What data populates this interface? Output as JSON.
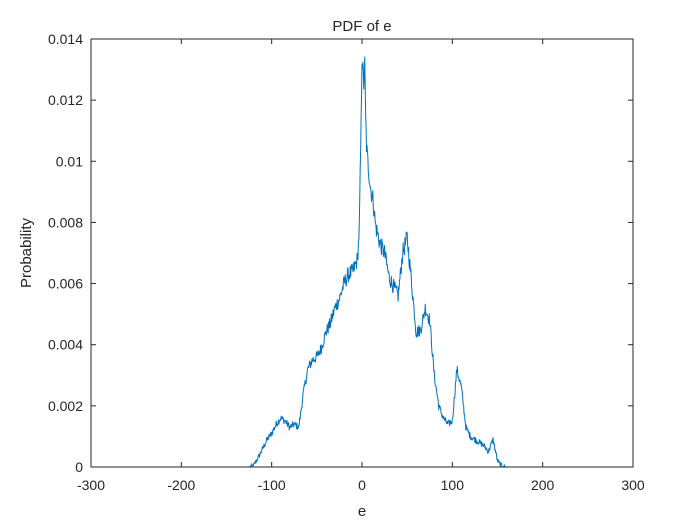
{
  "chart_data": {
    "type": "line",
    "title": "PDF of e",
    "xlabel": "e",
    "ylabel": "Probability",
    "xlim": [
      -300,
      300
    ],
    "ylim": [
      0,
      0.014
    ],
    "xticks": [
      -300,
      -200,
      -100,
      0,
      100,
      200,
      300
    ],
    "xtick_labels": [
      "-300",
      "-200",
      "-100",
      "0",
      "100",
      "200",
      "300"
    ],
    "yticks": [
      0,
      0.002,
      0.004,
      0.006,
      0.008,
      0.01,
      0.012,
      0.014
    ],
    "ytick_labels": [
      "0",
      "0.002",
      "0.004",
      "0.006",
      "0.008",
      "0.01",
      "0.012",
      "0.014"
    ],
    "grid": false,
    "line_color": "#0072BD",
    "series": [
      {
        "x": [
          -255,
          -200,
          -150,
          -125,
          -120,
          -115,
          -110,
          -105,
          -100,
          -95,
          -90,
          -85,
          -80,
          -75,
          -70,
          -65,
          -60,
          -55,
          -50,
          -45,
          -40,
          -35,
          -30,
          -25,
          -20,
          -15,
          -10,
          -5,
          -3,
          -1,
          0,
          1,
          2,
          3,
          4,
          5,
          7,
          10,
          12,
          15,
          20,
          25,
          30,
          35,
          40,
          45,
          50,
          55,
          60,
          65,
          70,
          75,
          80,
          85,
          90,
          95,
          100,
          105,
          110,
          115,
          120,
          125,
          130,
          135,
          140,
          145,
          150,
          155,
          160,
          200,
          255
        ],
        "y": [
          0,
          0,
          0,
          0,
          5e-05,
          0.0003,
          0.0006,
          0.0009,
          0.0011,
          0.0014,
          0.0016,
          0.0015,
          0.0013,
          0.0014,
          0.0013,
          0.0024,
          0.0032,
          0.0035,
          0.0036,
          0.0039,
          0.0044,
          0.0047,
          0.0052,
          0.0055,
          0.006,
          0.0063,
          0.0064,
          0.0068,
          0.0078,
          0.0112,
          0.0134,
          0.013,
          0.0125,
          0.0132,
          0.0115,
          0.0105,
          0.0098,
          0.009,
          0.0088,
          0.0079,
          0.0073,
          0.007,
          0.0062,
          0.0059,
          0.0056,
          0.007,
          0.0075,
          0.006,
          0.0044,
          0.0045,
          0.0052,
          0.0048,
          0.003,
          0.002,
          0.0016,
          0.0014,
          0.0015,
          0.0032,
          0.0026,
          0.0013,
          0.001,
          0.0009,
          0.0008,
          0.0007,
          0.0005,
          0.0009,
          0.0002,
          3e-05,
          0,
          0,
          0
        ]
      }
    ]
  }
}
